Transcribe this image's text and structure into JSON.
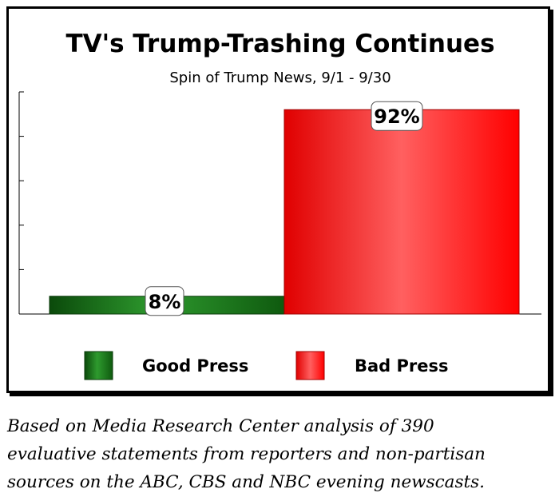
{
  "chart_data": {
    "type": "bar",
    "title": "TV's Trump-Trashing Continues",
    "subtitle": "Spin of Trump News, 9/1 - 9/30",
    "categories": [
      "Good Press",
      "Bad Press"
    ],
    "values": [
      8,
      92
    ],
    "data_labels": [
      "8%",
      "92%"
    ],
    "unit": "%",
    "ylim": [
      0,
      100
    ],
    "grid": false,
    "legend_position": "bottom",
    "colors": {
      "Good Press": "#1f7a1f",
      "Bad Press": "#ff1a1a"
    },
    "xlabel": "",
    "ylabel": ""
  },
  "caption": {
    "lines": [
      "Based on Media Research Center analysis of 390",
      "evaluative statements from reporters and non-partisan",
      "sources on the ABC, CBS and NBC evening newscasts."
    ]
  }
}
